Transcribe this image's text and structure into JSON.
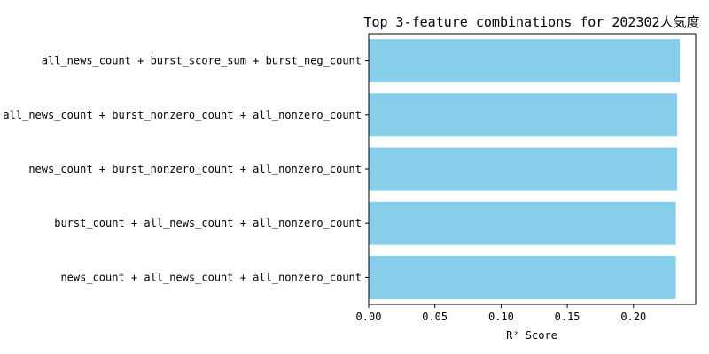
{
  "chart_data": {
    "type": "bar",
    "orientation": "horizontal",
    "title": "Top 3-feature combinations for 202302人気度",
    "xlabel": "R² Score",
    "ylabel": "",
    "categories": [
      "all_news_count + burst_score_sum + burst_neg_count",
      "all_news_count + burst_nonzero_count + all_nonzero_count",
      "news_count + burst_nonzero_count + all_nonzero_count",
      "burst_count + all_news_count + all_nonzero_count",
      "news_count + all_news_count + all_nonzero_count"
    ],
    "values": [
      0.235,
      0.233,
      0.233,
      0.232,
      0.232
    ],
    "xlim": [
      0.0,
      0.247
    ],
    "xticks": [
      0.0,
      0.05,
      0.1,
      0.15,
      0.2
    ],
    "xtick_labels": [
      "0.00",
      "0.05",
      "0.10",
      "0.15",
      "0.20"
    ],
    "bar_color": "#87ceeb",
    "grid": false,
    "legend": "none"
  }
}
